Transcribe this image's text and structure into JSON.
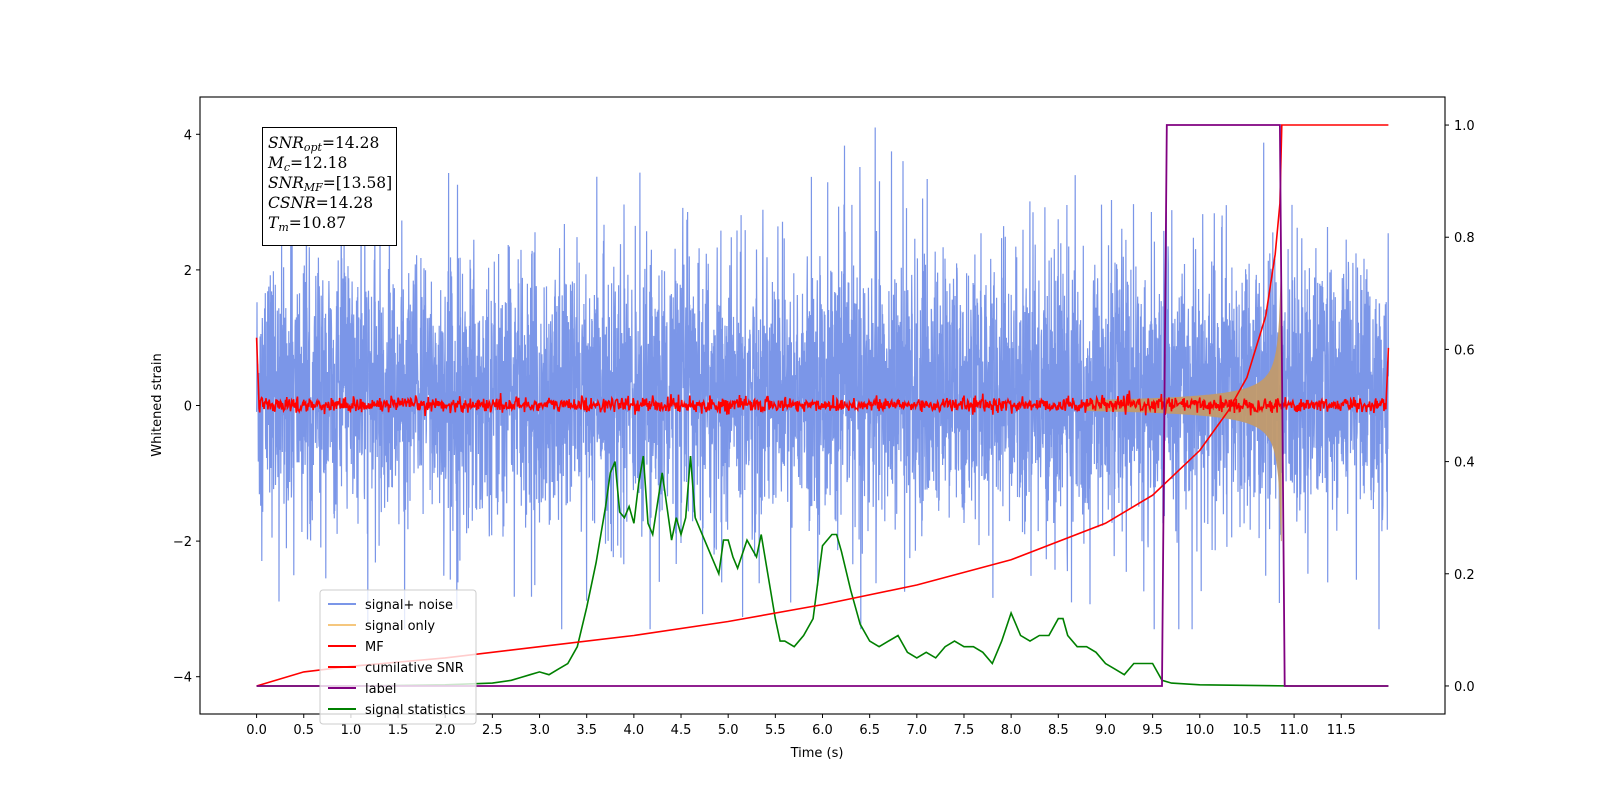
{
  "chart_data": {
    "type": "line",
    "xlabel": "Time (s)",
    "ylabel": "Whitened strain",
    "xlim": [
      -0.6,
      12.6
    ],
    "xticks": [
      "0.0",
      "0.5",
      "1.0",
      "1.5",
      "2.0",
      "2.5",
      "3.0",
      "3.5",
      "4.0",
      "4.5",
      "5.0",
      "5.5",
      "6.0",
      "6.5",
      "7.0",
      "7.5",
      "8.0",
      "8.5",
      "9.0",
      "9.5",
      "10.0",
      "10.5",
      "11.0",
      "11.5"
    ],
    "ylim": [
      -4.55,
      4.55
    ],
    "yticks": [
      "−4",
      "−2",
      "0",
      "2",
      "4"
    ],
    "y2lim": [
      -0.05,
      1.05
    ],
    "y2ticks": [
      "0.0",
      "0.2",
      "0.4",
      "0.6",
      "0.8",
      "1.0"
    ],
    "grid": false,
    "legend_position": "lower-left",
    "annotation": {
      "snr_opt_label": "SNR",
      "snr_opt_sub": "opt",
      "snr_opt_value": "=14.28",
      "mc_label": "M",
      "mc_sub": "c",
      "mc_value": "=12.18",
      "snr_mf_label": "SNR",
      "snr_mf_sub": "MF",
      "snr_mf_value": "=[13.58]",
      "csnr_label": "CSNR",
      "csnr_value": "=14.28",
      "tm_label": "T",
      "tm_sub": "m",
      "tm_value": "=10.87"
    },
    "series": [
      {
        "name": "signal+ noise",
        "axis": "left",
        "color": "#7b96e8",
        "description_values": "white noise, amplitude ~±2.5, peaks up to 4.1, t from 0 to 12"
      },
      {
        "name": "signal only",
        "axis": "left",
        "color": "#f5c77e",
        "chirp_end": 10.87,
        "amplitude_end": 2.0
      },
      {
        "name": "MF",
        "axis": "left",
        "color": "#ff0000",
        "amplitude": 0.12
      },
      {
        "name": "cumilative SNR",
        "axis": "right",
        "color": "#ff0000",
        "x": [
          0.0,
          0.5,
          1.0,
          2.0,
          3.0,
          4.0,
          5.0,
          6.0,
          7.0,
          8.0,
          9.0,
          9.5,
          10.0,
          10.3,
          10.5,
          10.7,
          10.8,
          10.85,
          10.87,
          12.0
        ],
        "y": [
          0.0,
          0.025,
          0.035,
          0.05,
          0.07,
          0.09,
          0.115,
          0.145,
          0.18,
          0.225,
          0.29,
          0.34,
          0.42,
          0.49,
          0.55,
          0.66,
          0.77,
          0.86,
          1.0,
          1.0
        ]
      },
      {
        "name": "label",
        "axis": "right",
        "color": "#800080",
        "x": [
          0.0,
          9.6,
          9.65,
          10.85,
          10.9,
          12.0
        ],
        "y": [
          0.0,
          0.0,
          1.0,
          1.0,
          0.0,
          0.0
        ]
      },
      {
        "name": "signal statistics",
        "axis": "right",
        "color": "#008000",
        "x": [
          0.0,
          1.0,
          2.0,
          2.5,
          2.7,
          2.8,
          2.9,
          3.0,
          3.1,
          3.2,
          3.3,
          3.4,
          3.5,
          3.6,
          3.7,
          3.75,
          3.8,
          3.85,
          3.9,
          3.95,
          4.0,
          4.05,
          4.1,
          4.15,
          4.2,
          4.3,
          4.4,
          4.45,
          4.5,
          4.55,
          4.6,
          4.65,
          4.7,
          4.8,
          4.9,
          4.95,
          5.0,
          5.05,
          5.1,
          5.2,
          5.3,
          5.35,
          5.4,
          5.5,
          5.55,
          5.6,
          5.7,
          5.8,
          5.9,
          6.0,
          6.1,
          6.15,
          6.2,
          6.3,
          6.4,
          6.5,
          6.6,
          6.7,
          6.8,
          6.9,
          7.0,
          7.1,
          7.2,
          7.3,
          7.4,
          7.5,
          7.6,
          7.7,
          7.8,
          7.9,
          8.0,
          8.05,
          8.1,
          8.2,
          8.3,
          8.4,
          8.5,
          8.55,
          8.6,
          8.7,
          8.8,
          8.9,
          9.0,
          9.1,
          9.2,
          9.3,
          9.4,
          9.5,
          9.6,
          9.7,
          10.0,
          11.0,
          12.0
        ],
        "y": [
          0.0,
          0.0,
          0.002,
          0.005,
          0.01,
          0.015,
          0.02,
          0.025,
          0.02,
          0.03,
          0.04,
          0.07,
          0.14,
          0.22,
          0.32,
          0.38,
          0.4,
          0.31,
          0.3,
          0.32,
          0.29,
          0.36,
          0.41,
          0.29,
          0.27,
          0.38,
          0.26,
          0.3,
          0.27,
          0.3,
          0.41,
          0.3,
          0.28,
          0.24,
          0.2,
          0.26,
          0.26,
          0.23,
          0.21,
          0.26,
          0.23,
          0.27,
          0.22,
          0.12,
          0.08,
          0.08,
          0.07,
          0.09,
          0.12,
          0.25,
          0.27,
          0.27,
          0.24,
          0.17,
          0.11,
          0.08,
          0.07,
          0.08,
          0.09,
          0.06,
          0.05,
          0.06,
          0.05,
          0.07,
          0.08,
          0.07,
          0.07,
          0.06,
          0.04,
          0.08,
          0.13,
          0.11,
          0.09,
          0.08,
          0.09,
          0.09,
          0.12,
          0.12,
          0.09,
          0.07,
          0.07,
          0.06,
          0.04,
          0.03,
          0.02,
          0.04,
          0.04,
          0.04,
          0.01,
          0.005,
          0.002,
          0.0,
          0.0
        ]
      }
    ]
  }
}
